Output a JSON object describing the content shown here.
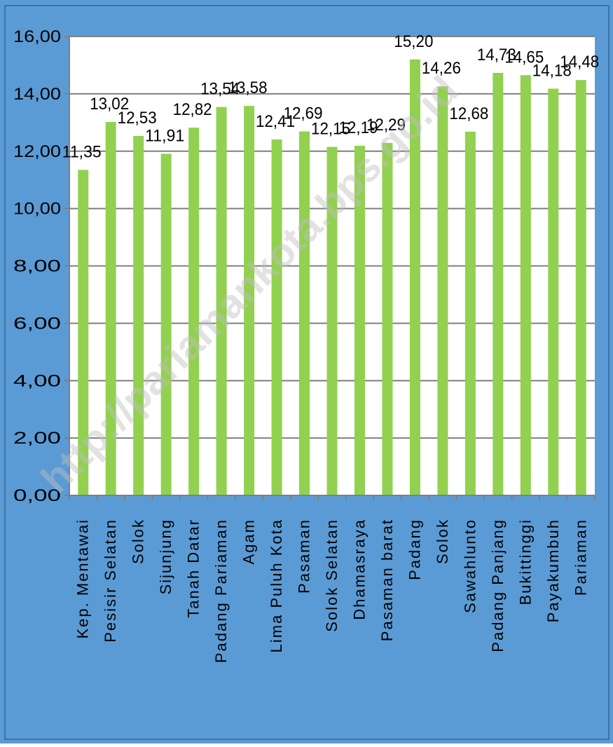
{
  "chart_data": {
    "type": "bar",
    "categories": [
      "Kep. Mentawai",
      "Pesisir Selatan",
      "Solok",
      "Sijunjung",
      "Tanah Datar",
      "Padang Pariaman",
      "Agam",
      "Lima Puluh Kota",
      "Pasaman",
      "Solok Selatan",
      "Dhamasraya",
      "Pasaman barat",
      "Padang",
      "Solok",
      "Sawahlunto",
      "Padang Panjang",
      "Bukittinggi",
      "Payakumbuh",
      "Pariaman"
    ],
    "values": [
      11.35,
      13.02,
      12.53,
      11.91,
      12.82,
      13.54,
      13.58,
      12.41,
      12.69,
      12.15,
      12.19,
      12.29,
      15.2,
      14.26,
      12.68,
      14.73,
      14.65,
      14.18,
      14.48
    ],
    "value_labels": [
      "11,35",
      "13,02",
      "12,53",
      "11,91",
      "12,82",
      "13,54",
      "13,58",
      "12,41",
      "12,69",
      "12,15",
      "12,19",
      "12,29",
      "15,20",
      "14,26",
      "12,68",
      "14,73",
      "14,65",
      "14,18",
      "14,48"
    ],
    "y_ticks": [
      "0,00",
      "2,00",
      "4,00",
      "6,00",
      "8,00",
      "10,00",
      "12,00",
      "14,00",
      "16,00"
    ],
    "ylim": [
      0,
      16
    ],
    "grid": true,
    "legend": "none",
    "title": "",
    "xlabel": "",
    "ylabel": "",
    "watermark": "http://pariamankota.bps.go.id",
    "colors": {
      "background": "#5B9BD5",
      "plot_area": "#FFFFFF",
      "bar": "#92D050",
      "grid": "#7F7F7F",
      "text": "#000000",
      "watermark": "#BFBFBF"
    }
  }
}
